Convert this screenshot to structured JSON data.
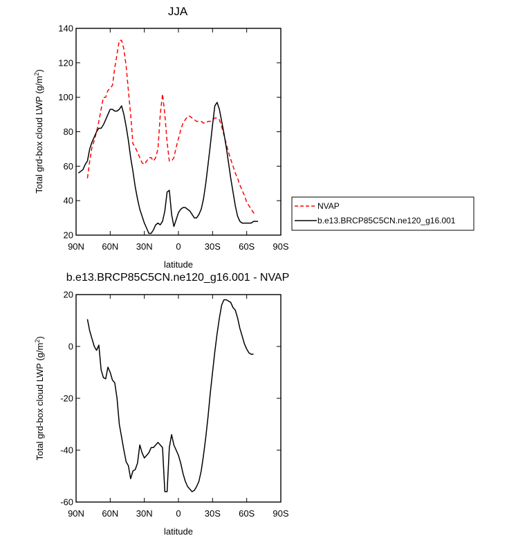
{
  "chart_data": [
    {
      "type": "line",
      "title": "JJA",
      "xlabel": "latitude",
      "ylabel_main": "Total grd-box cloud LWP (g/m",
      "ylabel_sup": "2",
      "ylabel_close": ")",
      "xlim": [
        90,
        -90
      ],
      "ylim": [
        20,
        140
      ],
      "xticks": [
        90,
        60,
        30,
        0,
        -30,
        -60,
        -90
      ],
      "xtick_labels": [
        "90N",
        "60N",
        "30N",
        "0",
        "30S",
        "60S",
        "90S"
      ],
      "yticks": [
        20,
        40,
        60,
        80,
        100,
        120,
        140
      ],
      "ytick_labels": [
        "20",
        "40",
        "60",
        "80",
        "100",
        "120",
        "140"
      ],
      "grid": false,
      "legend_position": "right",
      "series": [
        {
          "name": "NVAP",
          "color": "#ff0000",
          "dash": "dashed",
          "x": [
            80,
            78,
            76,
            74,
            72,
            70,
            68,
            66,
            64,
            62,
            60,
            58,
            56,
            54,
            52,
            50,
            48,
            46,
            44,
            42,
            40,
            38,
            36,
            34,
            32,
            30,
            28,
            26,
            24,
            22,
            20,
            18,
            16,
            14,
            12,
            10,
            8,
            6,
            4,
            2,
            0,
            -2,
            -4,
            -6,
            -8,
            -10,
            -12,
            -14,
            -16,
            -18,
            -20,
            -22,
            -24,
            -26,
            -28,
            -30,
            -32,
            -34,
            -36,
            -38,
            -40,
            -42,
            -44,
            -46,
            -48,
            -50,
            -52,
            -54,
            -56,
            -58,
            -60,
            -62,
            -64,
            -66,
            -68
          ],
          "y": [
            53,
            63,
            71,
            75,
            80,
            86,
            93,
            100,
            100,
            104,
            105,
            107,
            117,
            125,
            133,
            133,
            128,
            118,
            104,
            90,
            73,
            71,
            68,
            65,
            62,
            61,
            63,
            65,
            65,
            63,
            65,
            70,
            90,
            102,
            90,
            74,
            63,
            63,
            65,
            71,
            76,
            81,
            85,
            87,
            89,
            89,
            88,
            87,
            86,
            86,
            86,
            85,
            85,
            86,
            86,
            87,
            88,
            88,
            87,
            83,
            78,
            73,
            68,
            64,
            60,
            56,
            53,
            49,
            46,
            43,
            39,
            37,
            35,
            33,
            32
          ]
        },
        {
          "name": "b.e13.BRCP85C5CN.ne120_g16.001",
          "color": "#000000",
          "dash": "solid",
          "x": [
            88,
            86,
            84,
            82,
            80,
            78,
            76,
            74,
            72,
            70,
            68,
            66,
            64,
            62,
            60,
            58,
            56,
            54,
            52,
            50,
            48,
            46,
            44,
            42,
            40,
            38,
            36,
            34,
            32,
            30,
            28,
            26,
            24,
            22,
            20,
            18,
            16,
            14,
            12,
            10,
            8,
            6,
            4,
            2,
            0,
            -2,
            -4,
            -6,
            -8,
            -10,
            -12,
            -14,
            -16,
            -18,
            -20,
            -22,
            -24,
            -26,
            -28,
            -30,
            -32,
            -34,
            -36,
            -38,
            -40,
            -42,
            -44,
            -46,
            -48,
            -50,
            -52,
            -54,
            -56,
            -58,
            -60,
            -62,
            -64,
            -66,
            -68,
            -70
          ],
          "y": [
            56,
            57,
            58,
            61,
            63,
            70,
            74,
            77,
            80,
            82,
            82,
            84,
            87,
            90,
            93,
            93,
            92,
            92,
            93,
            95,
            90,
            83,
            75,
            65,
            57,
            48,
            41,
            35,
            31,
            27,
            24,
            21,
            21,
            23,
            26,
            27,
            26,
            28,
            34,
            45,
            46,
            32,
            25,
            29,
            33,
            35,
            36,
            36,
            35,
            34,
            32,
            30,
            30,
            32,
            35,
            41,
            50,
            61,
            72,
            84,
            95,
            97,
            93,
            86,
            79,
            71,
            62,
            53,
            45,
            37,
            31,
            28,
            27,
            27,
            27,
            27,
            27,
            28,
            28,
            28
          ]
        }
      ]
    },
    {
      "type": "line",
      "title": "b.e13.BRCP85C5CN.ne120_g16.001 - NVAP",
      "xlabel": "latitude",
      "ylabel_main": "Total grd-box cloud LWP (g/m",
      "ylabel_sup": "2",
      "ylabel_close": ")",
      "xlim": [
        90,
        -90
      ],
      "ylim": [
        -60,
        20
      ],
      "xticks": [
        90,
        60,
        30,
        0,
        -30,
        -60,
        -90
      ],
      "xtick_labels": [
        "90N",
        "60N",
        "30N",
        "0",
        "30S",
        "60S",
        "90S"
      ],
      "yticks": [
        -60,
        -40,
        -20,
        0,
        20
      ],
      "ytick_labels": [
        "-60",
        "-40",
        "-20",
        "0",
        "20"
      ],
      "grid": false,
      "series": [
        {
          "color": "#000000",
          "dash": "solid",
          "x": [
            80,
            78,
            76,
            74,
            72,
            70,
            68,
            66,
            64,
            62,
            60,
            58,
            56,
            54,
            52,
            50,
            48,
            46,
            44,
            42,
            40,
            38,
            36,
            34,
            32,
            30,
            28,
            26,
            24,
            22,
            20,
            18,
            16,
            14,
            12,
            10,
            8,
            6,
            4,
            2,
            0,
            -2,
            -4,
            -6,
            -8,
            -10,
            -12,
            -14,
            -16,
            -18,
            -20,
            -22,
            -24,
            -26,
            -28,
            -30,
            -32,
            -34,
            -36,
            -38,
            -40,
            -42,
            -44,
            -46,
            -48,
            -50,
            -52,
            -54,
            -56,
            -58,
            -60,
            -62,
            -64,
            -66
          ],
          "y": [
            10.5,
            6,
            3,
            0,
            -1.5,
            0.5,
            -9,
            -12,
            -12.5,
            -8,
            -10,
            -13,
            -14,
            -20,
            -30,
            -35,
            -40,
            -44.5,
            -46,
            -51,
            -48,
            -47.5,
            -45,
            -38,
            -41,
            -43,
            -42,
            -41,
            -39,
            -39,
            -38,
            -37,
            -38,
            -39,
            -56,
            -56,
            -39,
            -34,
            -38,
            -40,
            -42,
            -45,
            -49,
            -52,
            -54,
            -55,
            -56,
            -55.5,
            -54,
            -52,
            -48,
            -42,
            -35,
            -27,
            -18,
            -10,
            -2,
            5,
            11,
            16,
            18,
            18,
            17.5,
            17,
            15,
            14,
            11,
            7,
            4,
            1,
            -1,
            -2.5,
            -3,
            -3
          ]
        }
      ]
    }
  ]
}
